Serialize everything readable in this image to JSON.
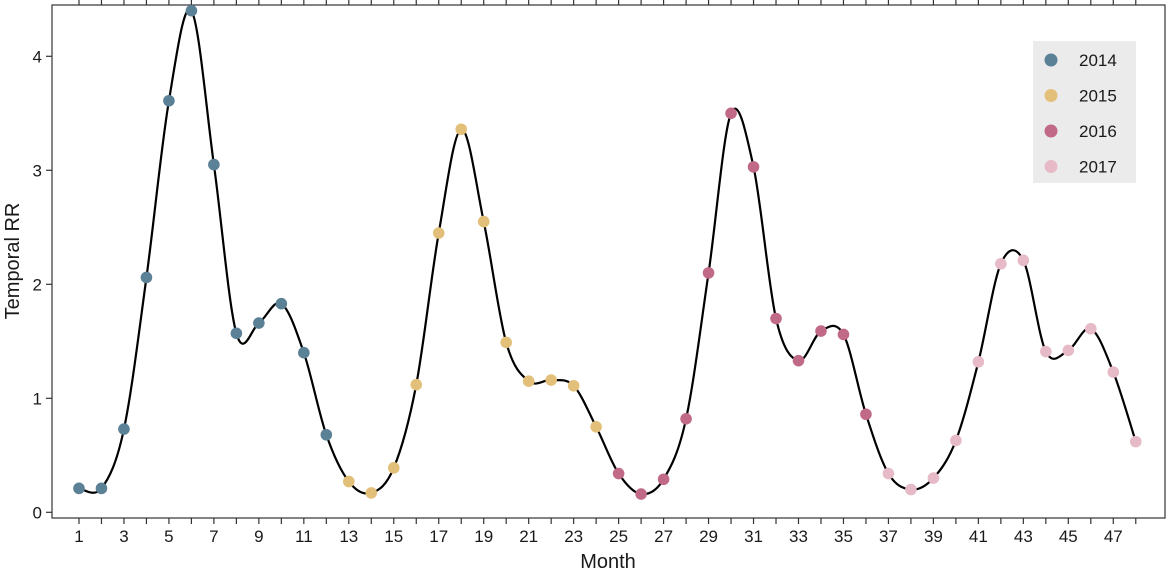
{
  "chart_data": {
    "type": "line",
    "title": "",
    "xlabel": "Month",
    "ylabel": "Temporal RR",
    "xlim": [
      -0.2,
      49.3
    ],
    "ylim": [
      -0.05,
      4.45
    ],
    "x_ticks": [
      1,
      3,
      5,
      7,
      9,
      11,
      13,
      15,
      17,
      19,
      21,
      23,
      25,
      27,
      29,
      31,
      33,
      35,
      37,
      39,
      41,
      43,
      45,
      47
    ],
    "x_tick_labels": [
      "1",
      "3",
      "5",
      "7",
      "9",
      "11",
      "13",
      "15",
      "17",
      "19",
      "21",
      "23",
      "25",
      "27",
      "29",
      "31",
      "33",
      "35",
      "37",
      "39",
      "41",
      "43",
      "45",
      "47"
    ],
    "x_minor_ticks": [
      2,
      4,
      6,
      8,
      10,
      12,
      14,
      16,
      18,
      20,
      22,
      24,
      26,
      28,
      30,
      32,
      34,
      36,
      38,
      40,
      42,
      44,
      46,
      48
    ],
    "y_ticks": [
      0,
      1,
      2,
      3,
      4
    ],
    "y_tick_labels": [
      "0",
      "1",
      "2",
      "3",
      "4"
    ],
    "grid": false,
    "legend_position": "top-right",
    "line_color": "#000000",
    "series": [
      {
        "name": "2014",
        "color": "#5b8196",
        "x": [
          1,
          2,
          3,
          4,
          5,
          6,
          7,
          8,
          9,
          10,
          11,
          12
        ],
        "y": [
          0.21,
          0.21,
          0.73,
          2.06,
          3.61,
          4.4,
          3.05,
          1.57,
          1.66,
          1.83,
          1.4,
          0.68
        ]
      },
      {
        "name": "2015",
        "color": "#e3c07a",
        "x": [
          13,
          14,
          15,
          16,
          17,
          18,
          19,
          20,
          21,
          22,
          23,
          24
        ],
        "y": [
          0.27,
          0.17,
          0.39,
          1.12,
          2.45,
          3.36,
          2.55,
          1.49,
          1.15,
          1.16,
          1.11,
          0.75
        ]
      },
      {
        "name": "2016",
        "color": "#c06a87",
        "x": [
          25,
          26,
          27,
          28,
          29,
          30,
          31,
          32,
          33,
          34,
          35,
          36
        ],
        "y": [
          0.34,
          0.16,
          0.29,
          0.82,
          2.1,
          3.5,
          3.03,
          1.7,
          1.33,
          1.59,
          1.56,
          0.86
        ]
      },
      {
        "name": "2017",
        "color": "#e6bac6",
        "x": [
          37,
          38,
          39,
          40,
          41,
          42,
          43,
          44,
          45,
          46,
          47,
          48
        ],
        "y": [
          0.34,
          0.2,
          0.3,
          0.63,
          1.32,
          2.18,
          2.21,
          1.41,
          1.42,
          1.61,
          1.23,
          0.62
        ]
      }
    ]
  }
}
